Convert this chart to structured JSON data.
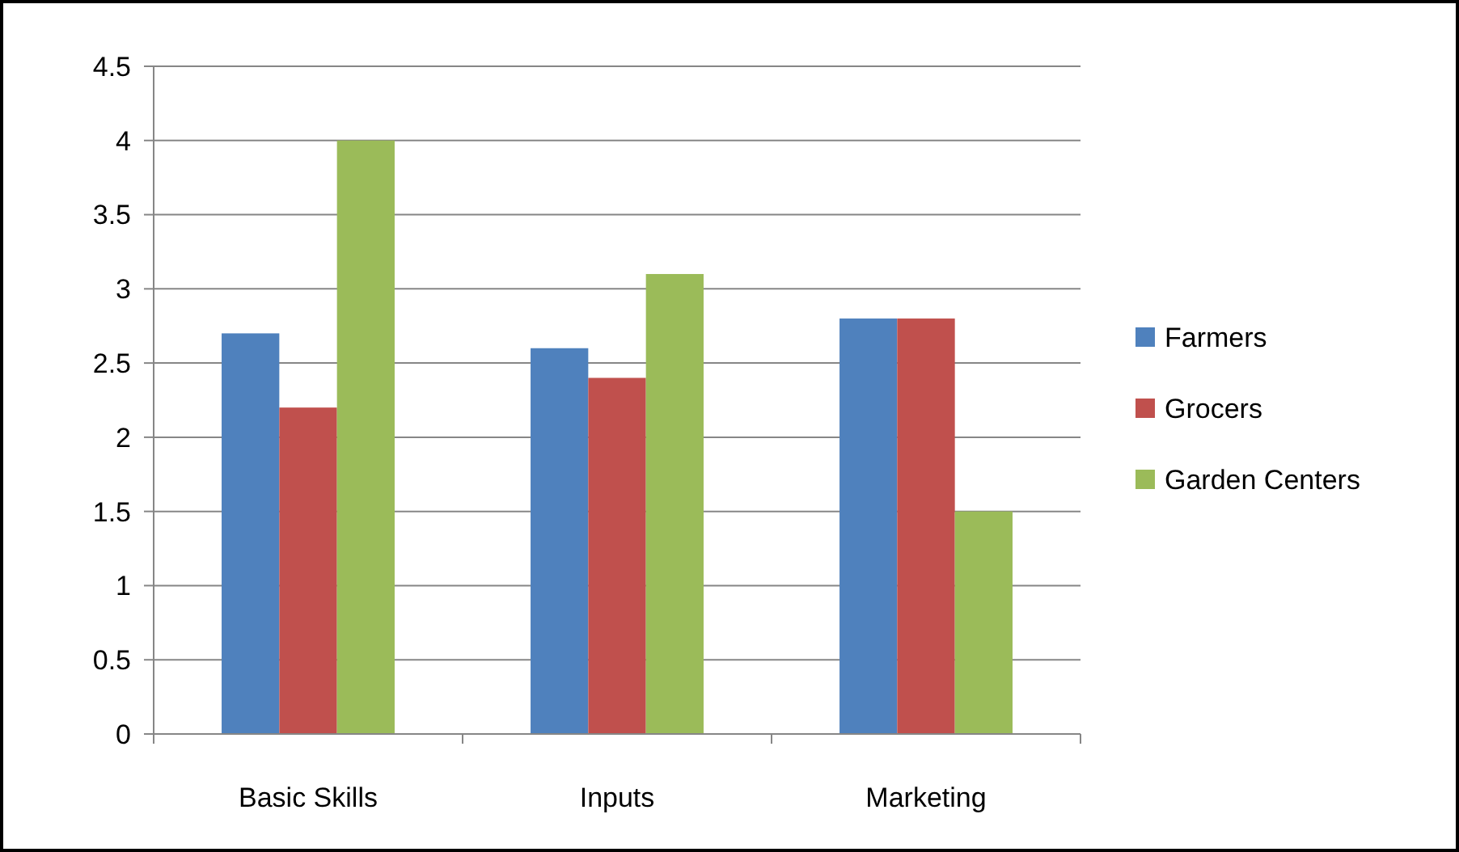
{
  "chart_data": {
    "type": "bar",
    "categories": [
      "Basic Skills",
      "Inputs",
      "Marketing"
    ],
    "series": [
      {
        "name": "Farmers",
        "color": "#4f81bd",
        "values": [
          2.7,
          2.6,
          2.8
        ]
      },
      {
        "name": "Grocers",
        "color": "#c0504d",
        "values": [
          2.2,
          2.4,
          2.8
        ]
      },
      {
        "name": "Garden Centers",
        "color": "#9bbb59",
        "values": [
          4,
          3.1,
          1.5
        ]
      }
    ],
    "ylim": [
      0,
      4.5
    ],
    "yticks": [
      0,
      0.5,
      1,
      1.5,
      2,
      2.5,
      3,
      3.5,
      4,
      4.5
    ],
    "grid": "y",
    "legend": "right"
  }
}
